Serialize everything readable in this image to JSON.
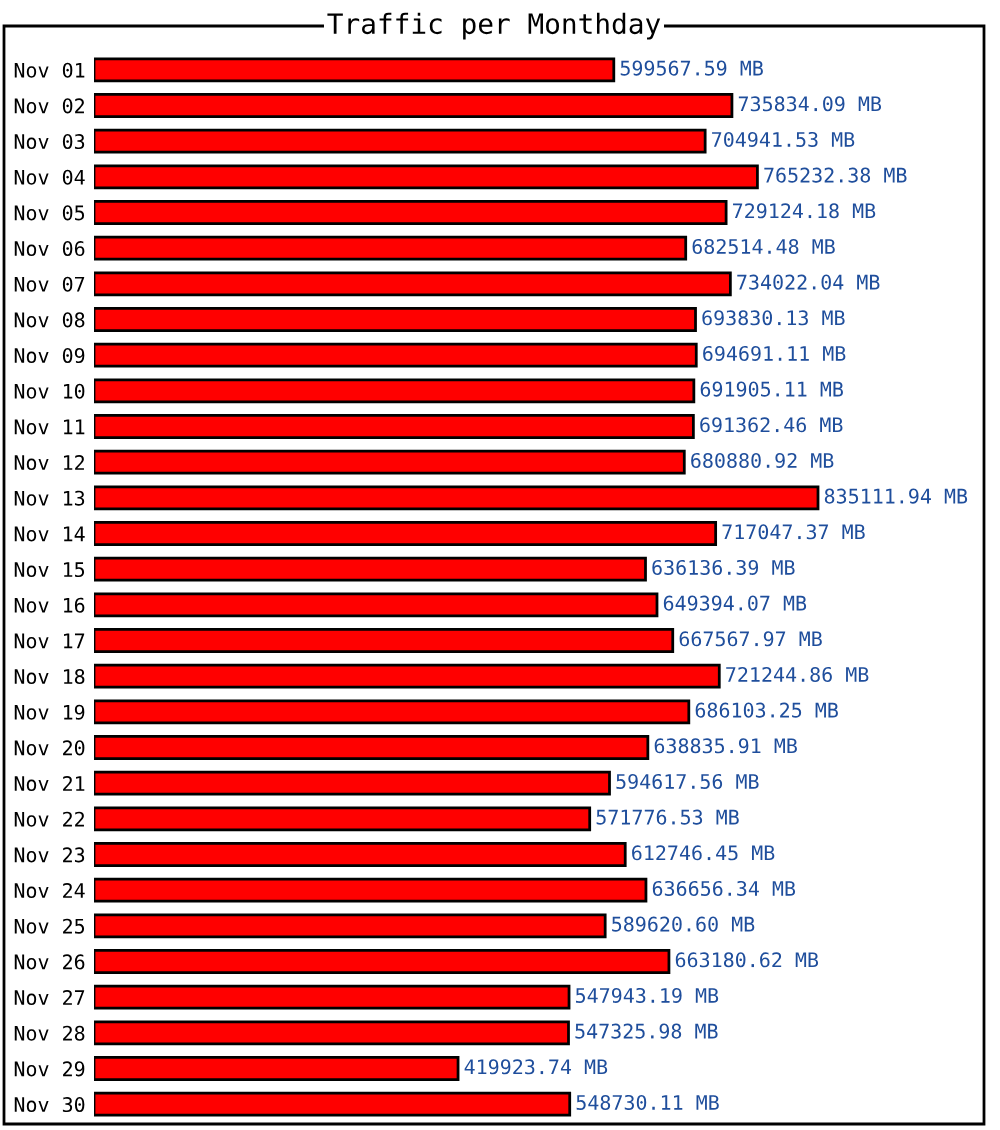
{
  "chart_data": {
    "type": "bar",
    "orientation": "horizontal",
    "title": "Traffic per Monthday",
    "categories": [
      "Nov 01",
      "Nov 02",
      "Nov 03",
      "Nov 04",
      "Nov 05",
      "Nov 06",
      "Nov 07",
      "Nov 08",
      "Nov 09",
      "Nov 10",
      "Nov 11",
      "Nov 12",
      "Nov 13",
      "Nov 14",
      "Nov 15",
      "Nov 16",
      "Nov 17",
      "Nov 18",
      "Nov 19",
      "Nov 20",
      "Nov 21",
      "Nov 22",
      "Nov 23",
      "Nov 24",
      "Nov 25",
      "Nov 26",
      "Nov 27",
      "Nov 28",
      "Nov 29",
      "Nov 30"
    ],
    "values": [
      599567.59,
      735834.09,
      704941.53,
      765232.38,
      729124.18,
      682514.48,
      734022.04,
      693830.13,
      694691.11,
      691905.11,
      691362.46,
      680880.92,
      835111.94,
      717047.37,
      636136.39,
      649394.07,
      667567.97,
      721244.86,
      686103.25,
      638835.91,
      594617.56,
      571776.53,
      612746.45,
      636656.34,
      589620.6,
      663180.62,
      547943.19,
      547325.98,
      419923.74,
      548730.11
    ],
    "value_labels": [
      "599567.59 MB",
      "735834.09 MB",
      "704941.53 MB",
      "765232.38 MB",
      "729124.18 MB",
      "682514.48 MB",
      "734022.04 MB",
      "693830.13 MB",
      "694691.11 MB",
      "691905.11 MB",
      "691362.46 MB",
      "680880.92 MB",
      "835111.94 MB",
      "717047.37 MB",
      "636136.39 MB",
      "649394.07 MB",
      "667567.97 MB",
      "721244.86 MB",
      "686103.25 MB",
      "638835.91 MB",
      "594617.56 MB",
      "571776.53 MB",
      "612746.45 MB",
      "636656.34 MB",
      "589620.60 MB",
      "663180.62 MB",
      "547943.19 MB",
      "547325.98 MB",
      "419923.74 MB",
      "548730.11 MB"
    ],
    "color": "#ff0000",
    "grid": false,
    "legend": false,
    "tick_labels": "y"
  }
}
